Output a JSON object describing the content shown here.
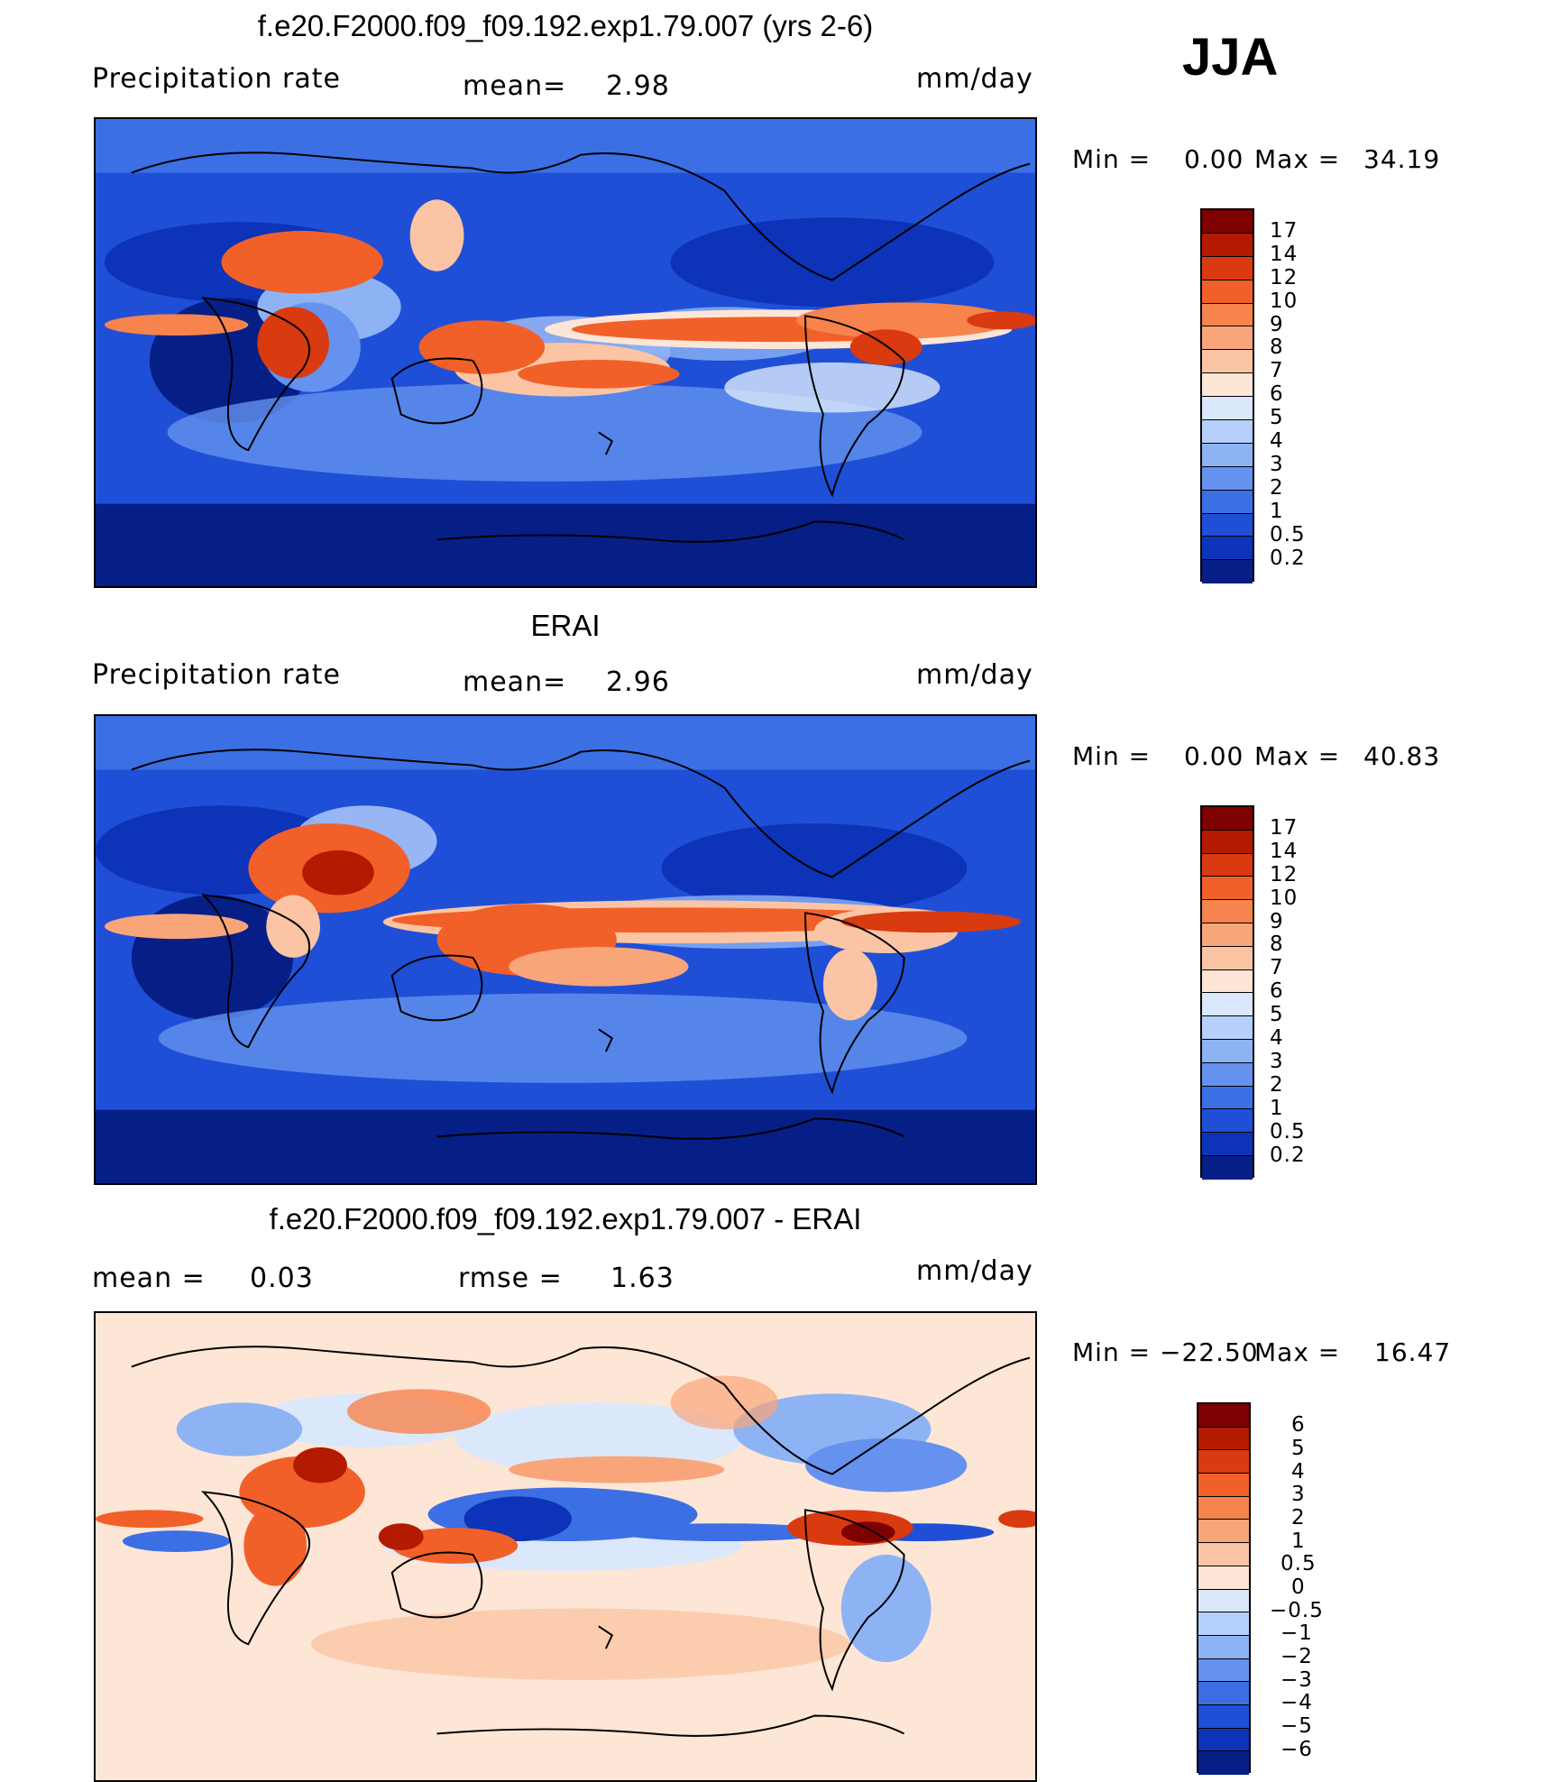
{
  "season": "JJA",
  "panels": [
    {
      "title": "f.e20.F2000.f09_f09.192.exp1.79.007 (yrs 2-6)",
      "field": "Precipitation rate",
      "stat1": "mean=",
      "stat1_value": "2.98",
      "stat2": "",
      "stat2_value": "",
      "units": "mm/day",
      "min_label": "Min =",
      "min": "0.00",
      "max_label": "Max =",
      "max": "34.19"
    },
    {
      "title": "ERAI",
      "field": "Precipitation rate",
      "stat1": "mean=",
      "stat1_value": "2.96",
      "stat2": "",
      "stat2_value": "",
      "units": "mm/day",
      "min_label": "Min =",
      "min": "0.00",
      "max_label": "Max =",
      "max": "40.83"
    },
    {
      "title": "f.e20.F2000.f09_f09.192.exp1.79.007 - ERAI",
      "field": "",
      "stat1": "mean =",
      "stat1_value": "0.03",
      "stat2": "rmse =",
      "stat2_value": "1.63",
      "units": "mm/day",
      "min_label": "Min =",
      "min": "−22.50",
      "max_label": "Max =",
      "max": "16.47"
    }
  ],
  "colorbar_precip": {
    "levels": [
      "17",
      "14",
      "12",
      "10",
      "9",
      "8",
      "7",
      "6",
      "5",
      "4",
      "3",
      "2",
      "1",
      "0.5",
      "0.2"
    ],
    "colors": [
      "#7f0000",
      "#b31a00",
      "#d93a10",
      "#f2602a",
      "#f7834d",
      "#f9a57a",
      "#fbc5a5",
      "#fde6d6",
      "#dbe8fb",
      "#b5d0fa",
      "#8db3f5",
      "#6492ee",
      "#3c6fe4",
      "#1f4fd6",
      "#0d33b8",
      "#061f87"
    ]
  },
  "colorbar_diff": {
    "levels": [
      "6",
      "5",
      "4",
      "3",
      "2",
      "1",
      "0.5",
      "0",
      "−0.5",
      "−1",
      "−2",
      "−3",
      "−4",
      "−5",
      "−6"
    ],
    "colors": [
      "#7f0000",
      "#b31a00",
      "#d93a10",
      "#f2602a",
      "#f7834d",
      "#f9a57a",
      "#fbc5a5",
      "#fde6d6",
      "#dbe8fb",
      "#b5d0fa",
      "#8db3f5",
      "#6492ee",
      "#3c6fe4",
      "#1f4fd6",
      "#0d33b8",
      "#061f87"
    ]
  }
}
